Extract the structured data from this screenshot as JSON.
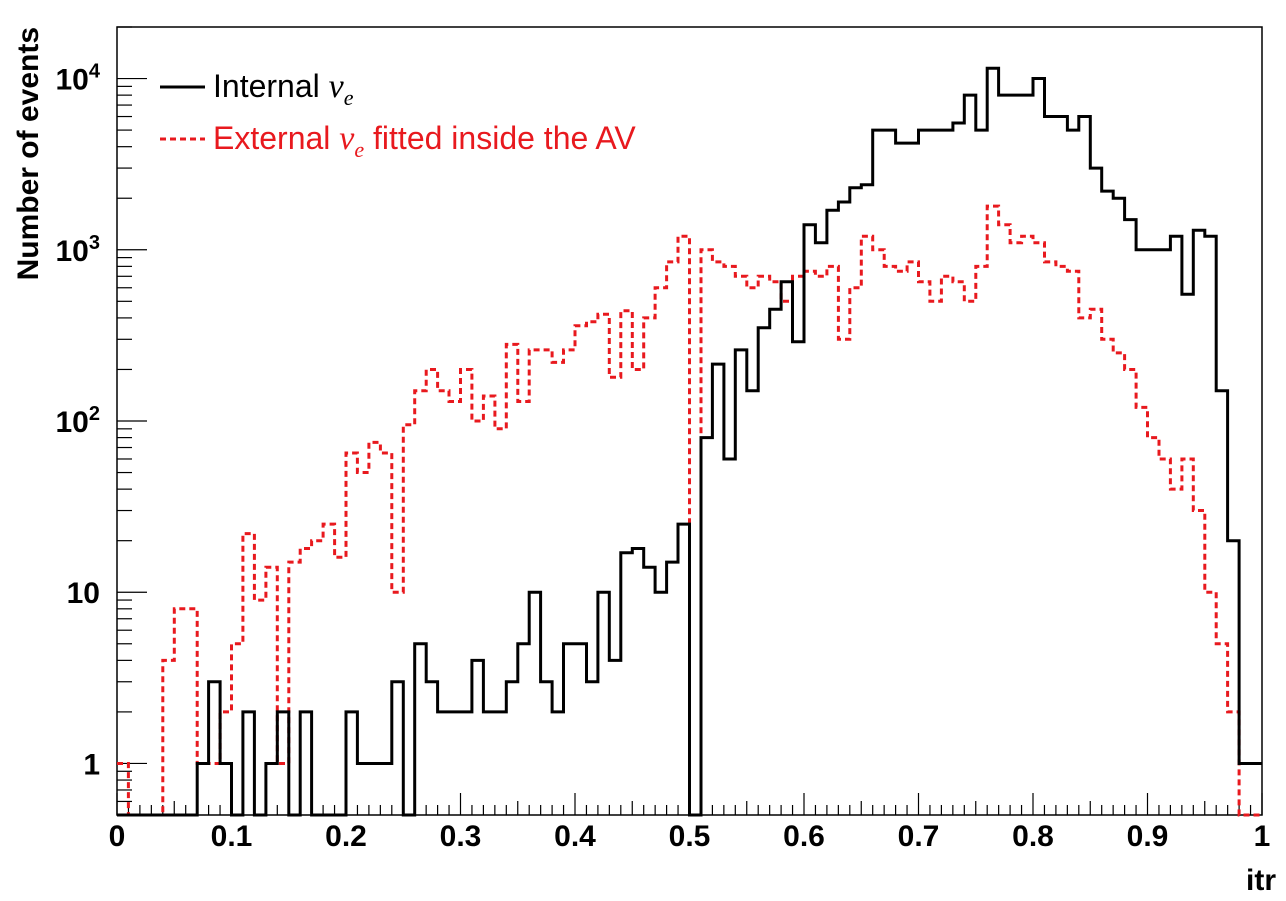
{
  "chart_data": {
    "type": "histogram-step",
    "xlabel": "itr",
    "ylabel": "Number of events",
    "xlim": [
      0,
      1
    ],
    "ylim": [
      0.5,
      20000
    ],
    "yscale": "log",
    "bin_width": 0.01,
    "x_ticks": [
      "0",
      "0.1",
      "0.2",
      "0.3",
      "0.4",
      "0.5",
      "0.6",
      "0.7",
      "0.8",
      "0.9",
      "1"
    ],
    "y_ticks": [
      {
        "base": "1",
        "exp": ""
      },
      {
        "base": "10",
        "exp": ""
      },
      {
        "base": "10",
        "exp": "2"
      },
      {
        "base": "10",
        "exp": "3"
      },
      {
        "base": "10",
        "exp": "4"
      }
    ],
    "legend_position": "top-left",
    "series": [
      {
        "name": "Internal",
        "symbol": "ν",
        "subscript": "e",
        "suffix": "",
        "color": "#000000",
        "style": "solid",
        "values": [
          0,
          0,
          0,
          0,
          0,
          0,
          0,
          1,
          3,
          1,
          0,
          2,
          0,
          1,
          2,
          0,
          2,
          0,
          0,
          0,
          2,
          1,
          1,
          1,
          3,
          0,
          5,
          3,
          2,
          2,
          2,
          4,
          2,
          2,
          3,
          5,
          10,
          3,
          2,
          5,
          5,
          3,
          10,
          4,
          17,
          18,
          14,
          10,
          15,
          25,
          0,
          80,
          215,
          60,
          260,
          150,
          350,
          450,
          650,
          290,
          1400,
          1100,
          1700,
          1900,
          2300,
          2400,
          5000,
          5000,
          4200,
          4200,
          5000,
          5000,
          5000,
          5500,
          8000,
          5000,
          11500,
          8000,
          8000,
          8000,
          10000,
          6000,
          6000,
          5000,
          6000,
          3000,
          2200,
          2000,
          1500,
          1000,
          1000,
          1000,
          1200,
          550,
          1300,
          1200,
          150,
          20,
          1,
          1
        ],
        "edge_values_outside_range": {
          "below_x_0.005": 0,
          "bins_0.49_to_0.51": 0
        }
      },
      {
        "name": "External",
        "symbol": "ν",
        "subscript": "e",
        "suffix": "fitted inside the AV",
        "color": "#e8191e",
        "style": "dashed",
        "values": [
          1,
          0.5,
          0,
          0,
          4,
          8,
          8,
          1,
          1,
          2,
          5,
          22,
          9,
          14,
          1,
          15,
          18,
          20,
          25,
          16,
          65,
          50,
          75,
          65,
          10,
          95,
          150,
          200,
          150,
          130,
          200,
          100,
          140,
          90,
          280,
          130,
          260,
          260,
          220,
          260,
          360,
          380,
          420,
          180,
          440,
          200,
          400,
          600,
          850,
          1200,
          0,
          1000,
          850,
          800,
          700,
          600,
          700,
          650,
          500,
          700,
          750,
          700,
          800,
          300,
          600,
          1200,
          1000,
          800,
          750,
          850,
          650,
          500,
          700,
          650,
          500,
          800,
          1800,
          1400,
          1100,
          1200,
          1100,
          850,
          800,
          750,
          400,
          450,
          300,
          250,
          200,
          120,
          80,
          60,
          40,
          60,
          30,
          10,
          5,
          2,
          0,
          0
        ]
      }
    ]
  }
}
